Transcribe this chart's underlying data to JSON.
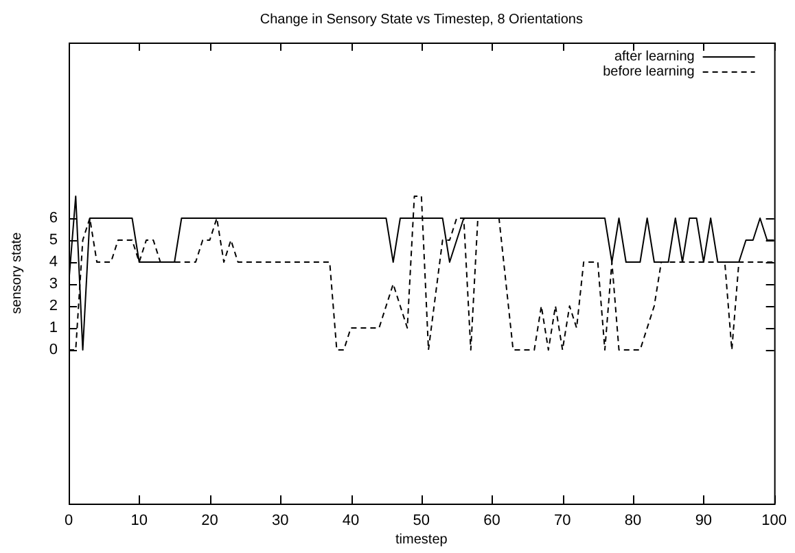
{
  "chart_data": {
    "type": "line",
    "title": "Change in Sensory State vs Timestep, 8 Orientations",
    "xlabel": "timestep",
    "ylabel": "sensory state",
    "x": [
      0,
      1,
      2,
      3,
      4,
      5,
      6,
      7,
      8,
      9,
      10,
      11,
      12,
      13,
      14,
      15,
      16,
      17,
      18,
      19,
      20,
      21,
      22,
      23,
      24,
      25,
      26,
      27,
      28,
      29,
      30,
      31,
      32,
      33,
      34,
      35,
      36,
      37,
      38,
      39,
      40,
      41,
      42,
      43,
      44,
      45,
      46,
      47,
      48,
      49,
      50,
      51,
      52,
      53,
      54,
      55,
      56,
      57,
      58,
      59,
      60,
      61,
      62,
      63,
      64,
      65,
      66,
      67,
      68,
      69,
      70,
      71,
      72,
      73,
      74,
      75,
      76,
      77,
      78,
      79,
      80,
      81,
      82,
      83,
      84,
      85,
      86,
      87,
      88,
      89,
      90,
      91,
      92,
      93,
      94,
      95,
      96,
      97,
      98,
      99,
      100
    ],
    "series": [
      {
        "name": "after learning",
        "color": "#000000",
        "line_style": "solid",
        "values": [
          3,
          7,
          0,
          6,
          6,
          6,
          6,
          6,
          6,
          6,
          4,
          4,
          4,
          4,
          4,
          4,
          6,
          6,
          6,
          6,
          6,
          6,
          6,
          6,
          6,
          6,
          6,
          6,
          6,
          6,
          6,
          6,
          6,
          6,
          6,
          6,
          6,
          6,
          6,
          6,
          6,
          6,
          6,
          6,
          6,
          6,
          4,
          6,
          6,
          6,
          6,
          6,
          6,
          6,
          4,
          5,
          6,
          6,
          6,
          6,
          6,
          6,
          6,
          6,
          6,
          6,
          6,
          6,
          6,
          6,
          6,
          6,
          6,
          6,
          6,
          6,
          6,
          4,
          6,
          4,
          4,
          4,
          6,
          4,
          4,
          4,
          6,
          4,
          6,
          6,
          4,
          6,
          4,
          4,
          4,
          4,
          5,
          5,
          6,
          5,
          5
        ]
      },
      {
        "name": "before learning",
        "color": "#000000",
        "line_style": "dashed",
        "values": [
          0,
          0,
          5,
          6,
          4,
          4,
          4,
          5,
          5,
          5,
          4,
          5,
          5,
          4,
          4,
          4,
          4,
          4,
          4,
          5,
          5,
          6,
          4,
          5,
          4,
          4,
          4,
          4,
          4,
          4,
          4,
          4,
          4,
          4,
          4,
          4,
          4,
          4,
          0,
          0,
          1,
          1,
          1,
          1,
          1,
          2,
          3,
          2,
          1,
          7,
          7,
          0,
          2.5,
          5,
          5,
          6,
          6,
          0,
          6,
          6,
          6,
          6,
          3,
          0,
          0,
          0,
          0,
          2,
          0,
          2,
          0,
          2,
          1,
          4,
          4,
          4,
          0,
          4,
          0,
          0,
          0,
          0,
          1,
          2,
          4,
          4,
          4,
          4,
          4,
          4,
          4,
          4,
          4,
          4,
          0,
          4,
          4,
          4,
          4,
          4,
          4
        ]
      }
    ],
    "xlim": [
      0,
      100
    ],
    "xticks": [
      0,
      10,
      20,
      30,
      40,
      50,
      60,
      70,
      80,
      90,
      100
    ],
    "ylim": [
      -7,
      14
    ],
    "yticks": [
      0,
      1,
      2,
      3,
      4,
      5,
      6
    ],
    "legend": "top right",
    "marker": "none"
  }
}
